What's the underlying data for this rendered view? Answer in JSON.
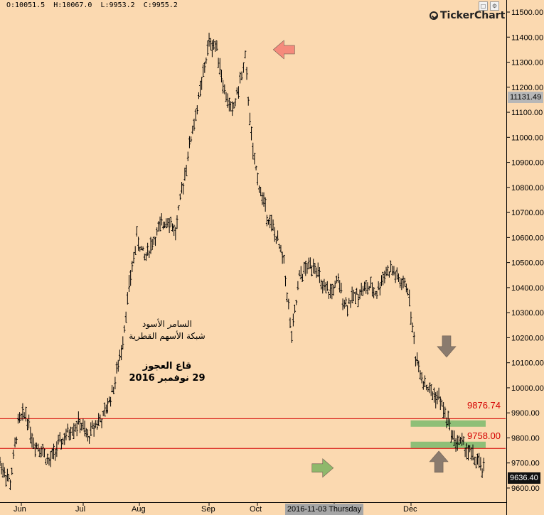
{
  "ohlc": {
    "open": "O:10051.5",
    "high": "H:10067.0",
    "low": "L:9953.2",
    "close": "C:9955.2"
  },
  "logo": {
    "text": "TickerChart"
  },
  "annotation": {
    "line1": "السامر الأسود",
    "line2": "شبكة الأسهم القطرية",
    "line3": "قاع العجوز",
    "line4": "29 نوفمبر 2016"
  },
  "crosshair_label": "2016-11-03 Thursday",
  "last_price": "9636.40",
  "crosshair_price": "11131.49",
  "colors": {
    "background": "#fbd9b0",
    "resistance_line": "#d40000",
    "zone": "#8fbf77",
    "arrow_red": "#f58a7c",
    "arrow_green": "#8fb86b",
    "arrow_gray": "#8a7b6e"
  },
  "chart_data": {
    "type": "ohlc",
    "title": "",
    "xlabel": "",
    "ylabel": "",
    "x_ticks": [
      "Jun",
      "Jul",
      "Aug",
      "Sep",
      "Oct",
      "Nov",
      "Dec"
    ],
    "y_ticks": [
      "11500.00",
      "11400.00",
      "11300.00",
      "11200.00",
      "11100.00",
      "11000.00",
      "10900.00",
      "10800.00",
      "10700.00",
      "10600.00",
      "10500.00",
      "10400.00",
      "10300.00",
      "10200.00",
      "10100.00",
      "10000.00",
      "9900.00",
      "9800.00",
      "9700.00",
      "9600.00"
    ],
    "ylim": [
      9590,
      11510
    ],
    "xrange": [
      "2016-05-25",
      "2016-12-31"
    ],
    "grid": false,
    "series": [
      {
        "points": [
          [
            "2016-05-25",
            9700
          ],
          [
            "2016-05-29",
            9620
          ],
          [
            "2016-06-01",
            9860
          ],
          [
            "2016-06-04",
            9900
          ],
          [
            "2016-06-07",
            9780
          ],
          [
            "2016-06-10",
            9760
          ],
          [
            "2016-06-13",
            9700
          ],
          [
            "2016-06-16",
            9760
          ],
          [
            "2016-06-19",
            9800
          ],
          [
            "2016-06-22",
            9840
          ],
          [
            "2016-06-25",
            9860
          ],
          [
            "2016-06-28",
            9800
          ],
          [
            "2016-07-01",
            9860
          ],
          [
            "2016-07-04",
            9880
          ],
          [
            "2016-07-08",
            10000
          ],
          [
            "2016-07-11",
            10150
          ],
          [
            "2016-07-14",
            10400
          ],
          [
            "2016-07-17",
            10600
          ],
          [
            "2016-07-20",
            10520
          ],
          [
            "2016-07-23",
            10580
          ],
          [
            "2016-07-26",
            10640
          ],
          [
            "2016-07-29",
            10680
          ],
          [
            "2016-08-01",
            10620
          ],
          [
            "2016-08-04",
            10820
          ],
          [
            "2016-08-07",
            11000
          ],
          [
            "2016-08-10",
            11150
          ],
          [
            "2016-08-14",
            11380
          ],
          [
            "2016-08-17",
            11360
          ],
          [
            "2016-08-20",
            11180
          ],
          [
            "2016-08-23",
            11100
          ],
          [
            "2016-08-26",
            11220
          ],
          [
            "2016-08-28",
            11310
          ],
          [
            "2016-08-31",
            10930
          ],
          [
            "2016-09-03",
            10780
          ],
          [
            "2016-09-06",
            10680
          ],
          [
            "2016-09-09",
            10600
          ],
          [
            "2016-09-12",
            10500
          ],
          [
            "2016-09-15",
            10200
          ],
          [
            "2016-09-18",
            10440
          ],
          [
            "2016-09-21",
            10480
          ],
          [
            "2016-09-24",
            10500
          ],
          [
            "2016-09-27",
            10390
          ],
          [
            "2016-09-30",
            10380
          ],
          [
            "2016-10-03",
            10420
          ],
          [
            "2016-10-06",
            10330
          ],
          [
            "2016-10-09",
            10360
          ],
          [
            "2016-10-12",
            10390
          ],
          [
            "2016-10-15",
            10400
          ],
          [
            "2016-10-18",
            10380
          ],
          [
            "2016-10-21",
            10460
          ],
          [
            "2016-10-24",
            10470
          ],
          [
            "2016-10-27",
            10420
          ],
          [
            "2016-10-30",
            10400
          ],
          [
            "2016-11-02",
            10130
          ],
          [
            "2016-11-05",
            10030
          ],
          [
            "2016-11-08",
            9980
          ],
          [
            "2016-11-11",
            9960
          ],
          [
            "2016-11-14",
            9880
          ],
          [
            "2016-11-17",
            9790
          ],
          [
            "2016-11-20",
            9780
          ],
          [
            "2016-11-23",
            9740
          ],
          [
            "2016-11-26",
            9700
          ],
          [
            "2016-11-29",
            9660
          ]
        ]
      }
    ],
    "levels": [
      {
        "label": "9876.74",
        "value": 9876.74
      },
      {
        "label": "9758.00",
        "value": 9758.0
      }
    ],
    "zones": [
      {
        "from": "2016-10-30",
        "to": "2016-12-30",
        "low": 9845,
        "high": 9870
      },
      {
        "from": "2016-10-30",
        "to": "2016-12-30",
        "low": 9760,
        "high": 9785
      }
    ],
    "arrows": [
      {
        "dir": "left",
        "color": "red",
        "date": "2016-09-12",
        "value": 11350
      },
      {
        "dir": "right",
        "color": "green",
        "date": "2016-09-27",
        "value": 9680
      },
      {
        "dir": "down",
        "color": "gray",
        "date": "2016-11-14",
        "value": 10165
      },
      {
        "dir": "up",
        "color": "gray",
        "date": "2016-11-11",
        "value": 9705
      }
    ]
  }
}
